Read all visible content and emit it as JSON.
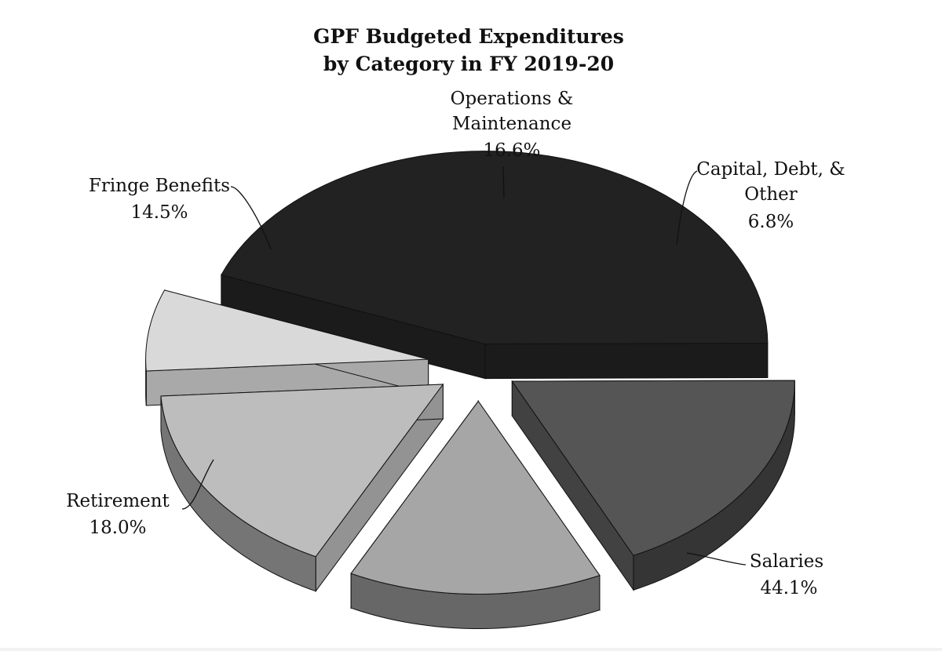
{
  "chart_data": {
    "type": "pie",
    "title": [
      "GPF Budgeted Expenditures",
      "by Category in FY 2019-20"
    ],
    "slices": [
      {
        "name": "Salaries",
        "label_lines": [
          "Salaries"
        ],
        "value": 44.1,
        "value_label": "44.1%",
        "color": "#222222"
      },
      {
        "name": "Retirement",
        "label_lines": [
          "Retirement"
        ],
        "value": 18.0,
        "value_label": "18.0%",
        "color": "#555555"
      },
      {
        "name": "Fringe Benefits",
        "label_lines": [
          "Fringe Benefits"
        ],
        "value": 14.5,
        "value_label": "14.5%",
        "color": "#a6a6a6"
      },
      {
        "name": "Operations & Maintenance",
        "label_lines": [
          "Operations &",
          "Maintenance"
        ],
        "value": 16.6,
        "value_label": "16.6%",
        "color": "#bdbdbd"
      },
      {
        "name": "Capital, Debt, & Other",
        "label_lines": [
          "Capital, Debt, &",
          "Other"
        ],
        "value": 6.8,
        "value_label": "6.8%",
        "color": "#d9d9d9"
      }
    ],
    "style": "3d-exploded"
  }
}
